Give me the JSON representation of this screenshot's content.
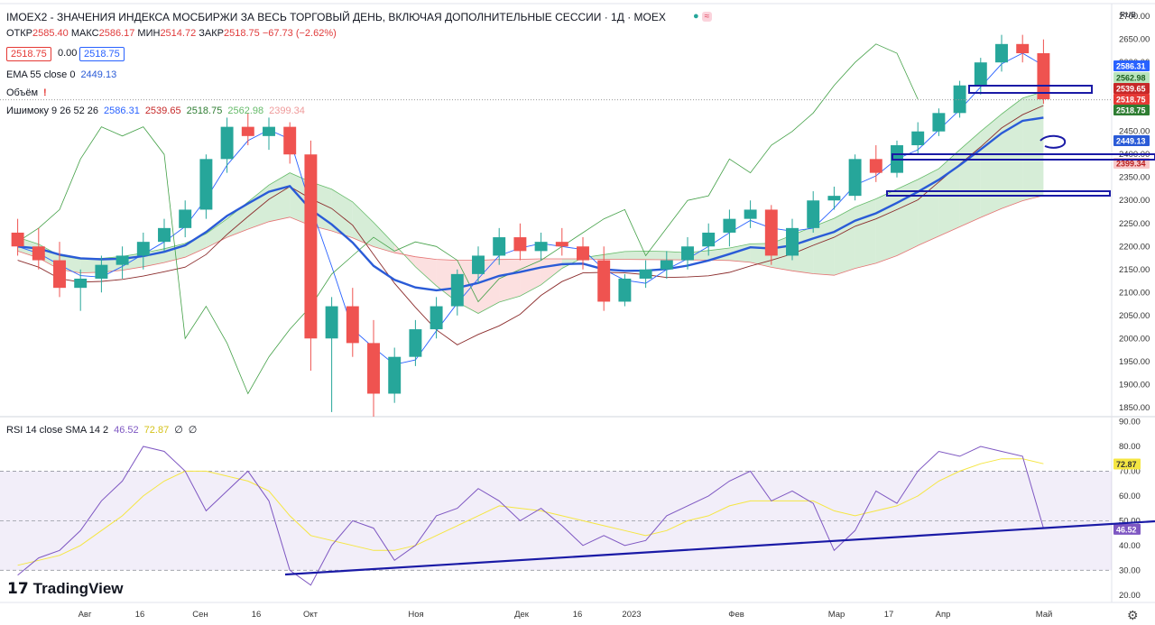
{
  "header": {
    "title": "IMOEX2 - ЗНАЧЕНИЯ ИНДЕКСА МОСБИРЖИ ЗА ВЕСЬ ТОРГОВЫЙ ДЕНЬ, ВКЛЮЧАЯ ДОПОЛНИТЕЛЬНЫЕ СЕССИИ · 1Д · MOEX",
    "open_label": "ОТКР",
    "open": "2585.40",
    "high_label": "МАКС",
    "high": "2586.17",
    "low_label": "МИН",
    "low": "2514.72",
    "close_label": "ЗАКР",
    "close": "2518.75",
    "change": "−67.73 (−2.62%)",
    "bid": "2518.75",
    "spread": "0.00",
    "ask": "2518.75",
    "currency": "RUB"
  },
  "legends": {
    "ema": {
      "label": "EMA 55 close 0",
      "value": "2449.13"
    },
    "volume": {
      "label": "Объём",
      "icon": "warning-icon"
    },
    "ichimoku": {
      "label": "Ишимоку 9 26 52 26",
      "v1": "2586.31",
      "v2": "2539.65",
      "v3": "2518.75",
      "v4": "2562.98",
      "v5": "2399.34"
    },
    "rsi": {
      "label": "RSI 14 close SMA 14 2",
      "v1": "46.52",
      "v2": "72.87",
      "v3": "∅",
      "v4": "∅"
    }
  },
  "branding": {
    "logo_text": "TradingView"
  },
  "colors": {
    "up": "#26a69a",
    "down": "#ef5350",
    "ema": "#2a5bd7",
    "tenkan": "#2962ff",
    "kijun": "#8b2c2c",
    "chikou": "#43a047",
    "cloud_bull": "#a5d6a7",
    "cloud_bear": "#f8bbbb",
    "rsi": "#7e57c2",
    "rsi_sma": "#f5e642",
    "drawing": "#1a1aa6"
  },
  "price_tags": [
    {
      "value": "2586.31",
      "color": "#2962ff"
    },
    {
      "value": "2562.98",
      "color": "#b9e4bd",
      "text_color": "#1b5e20"
    },
    {
      "value": "2539.65",
      "color": "#c62828"
    },
    {
      "value": "2518.75",
      "color": "#e53935"
    },
    {
      "value": "2518.75",
      "color": "#2e7d32"
    },
    {
      "value": "2449.13",
      "color": "#2a5bd7"
    },
    {
      "value": "2399.34",
      "color": "#f8c9c9",
      "text_color": "#b71c1c"
    }
  ],
  "rsi_tags": [
    {
      "value": "72.87",
      "color": "#f5e642",
      "text_color": "#333"
    },
    {
      "value": "46.52",
      "color": "#7e57c2"
    }
  ],
  "chart_data": [
    {
      "type": "candlestick",
      "title": "IMOEX2 · 1Д · MOEX",
      "y_ticks": [
        2700,
        2650,
        2600,
        2550,
        2500,
        2450,
        2400,
        2350,
        2300,
        2250,
        2200,
        2150,
        2100,
        2050,
        2000,
        1950,
        1900,
        1850
      ],
      "ylim": [
        1830,
        2720
      ],
      "x_ticks": [
        "Авг",
        "16",
        "Сен",
        "16",
        "Окт",
        "Ноя",
        "Дек",
        "16",
        "2023",
        "Фев",
        "Мар",
        "17",
        "Апр",
        "Май"
      ],
      "ohlc_approx": [
        [
          2230,
          2260,
          2180,
          2200
        ],
        [
          2200,
          2240,
          2150,
          2170
        ],
        [
          2170,
          2210,
          2090,
          2110
        ],
        [
          2110,
          2150,
          2060,
          2130
        ],
        [
          2130,
          2180,
          2100,
          2160
        ],
        [
          2160,
          2200,
          2130,
          2180
        ],
        [
          2180,
          2230,
          2150,
          2210
        ],
        [
          2210,
          2260,
          2190,
          2240
        ],
        [
          2240,
          2300,
          2220,
          2280
        ],
        [
          2280,
          2400,
          2260,
          2390
        ],
        [
          2390,
          2480,
          2360,
          2460
        ],
        [
          2460,
          2490,
          2420,
          2440
        ],
        [
          2440,
          2480,
          2410,
          2460
        ],
        [
          2460,
          2470,
          2380,
          2400
        ],
        [
          2400,
          2430,
          1930,
          2000
        ],
        [
          2000,
          2090,
          1840,
          2070
        ],
        [
          2070,
          2110,
          1960,
          1990
        ],
        [
          1990,
          2040,
          1830,
          1880
        ],
        [
          1880,
          1980,
          1860,
          1960
        ],
        [
          1960,
          2040,
          1940,
          2020
        ],
        [
          2020,
          2090,
          2000,
          2070
        ],
        [
          2070,
          2150,
          2050,
          2140
        ],
        [
          2140,
          2200,
          2120,
          2180
        ],
        [
          2180,
          2240,
          2160,
          2220
        ],
        [
          2220,
          2250,
          2170,
          2190
        ],
        [
          2190,
          2230,
          2170,
          2210
        ],
        [
          2210,
          2240,
          2180,
          2200
        ],
        [
          2200,
          2220,
          2150,
          2170
        ],
        [
          2170,
          2200,
          2060,
          2080
        ],
        [
          2080,
          2140,
          2070,
          2130
        ],
        [
          2130,
          2170,
          2110,
          2150
        ],
        [
          2150,
          2190,
          2130,
          2170
        ],
        [
          2170,
          2220,
          2150,
          2200
        ],
        [
          2200,
          2250,
          2180,
          2230
        ],
        [
          2230,
          2280,
          2200,
          2260
        ],
        [
          2260,
          2300,
          2240,
          2280
        ],
        [
          2280,
          2290,
          2160,
          2180
        ],
        [
          2180,
          2260,
          2170,
          2240
        ],
        [
          2240,
          2320,
          2230,
          2300
        ],
        [
          2300,
          2330,
          2280,
          2310
        ],
        [
          2310,
          2400,
          2300,
          2390
        ],
        [
          2390,
          2420,
          2340,
          2360
        ],
        [
          2360,
          2430,
          2350,
          2420
        ],
        [
          2420,
          2470,
          2400,
          2450
        ],
        [
          2450,
          2500,
          2440,
          2490
        ],
        [
          2490,
          2560,
          2480,
          2550
        ],
        [
          2550,
          2610,
          2530,
          2600
        ],
        [
          2600,
          2660,
          2580,
          2640
        ],
        [
          2640,
          2660,
          2600,
          2620
        ],
        [
          2620,
          2650,
          2510,
          2520
        ]
      ],
      "series": [
        {
          "name": "EMA 55",
          "last": 2449.13
        },
        {
          "name": "Ишимоку",
          "values": [
            2586.31,
            2539.65,
            2518.75,
            2562.98,
            2399.34
          ]
        }
      ]
    },
    {
      "type": "line",
      "title": "RSI 14 close SMA 14 2",
      "y_ticks": [
        90,
        80,
        70,
        60,
        50,
        40,
        30,
        20
      ],
      "ylim": [
        17,
        92
      ],
      "band": [
        30,
        70
      ],
      "midline": 50,
      "series": [
        {
          "name": "RSI",
          "values": [
            28,
            35,
            38,
            46,
            58,
            66,
            80,
            78,
            70,
            54,
            62,
            70,
            58,
            30,
            24,
            40,
            50,
            47,
            34,
            40,
            52,
            55,
            63,
            58,
            50,
            55,
            48,
            40,
            44,
            40,
            42,
            52,
            56,
            60,
            66,
            70,
            58,
            62,
            57,
            38,
            46,
            62,
            57,
            70,
            78,
            76,
            80,
            78,
            76,
            47
          ]
        },
        {
          "name": "SMA",
          "values": [
            32,
            34,
            36,
            40,
            46,
            52,
            60,
            66,
            70,
            70,
            68,
            66,
            62,
            52,
            44,
            42,
            40,
            38,
            38,
            40,
            44,
            48,
            52,
            56,
            55,
            54,
            52,
            50,
            48,
            46,
            44,
            46,
            50,
            52,
            56,
            58,
            58,
            58,
            58,
            54,
            52,
            54,
            56,
            60,
            66,
            70,
            73,
            75,
            75,
            73
          ]
        }
      ],
      "last": [
        46.52,
        72.87
      ]
    }
  ]
}
